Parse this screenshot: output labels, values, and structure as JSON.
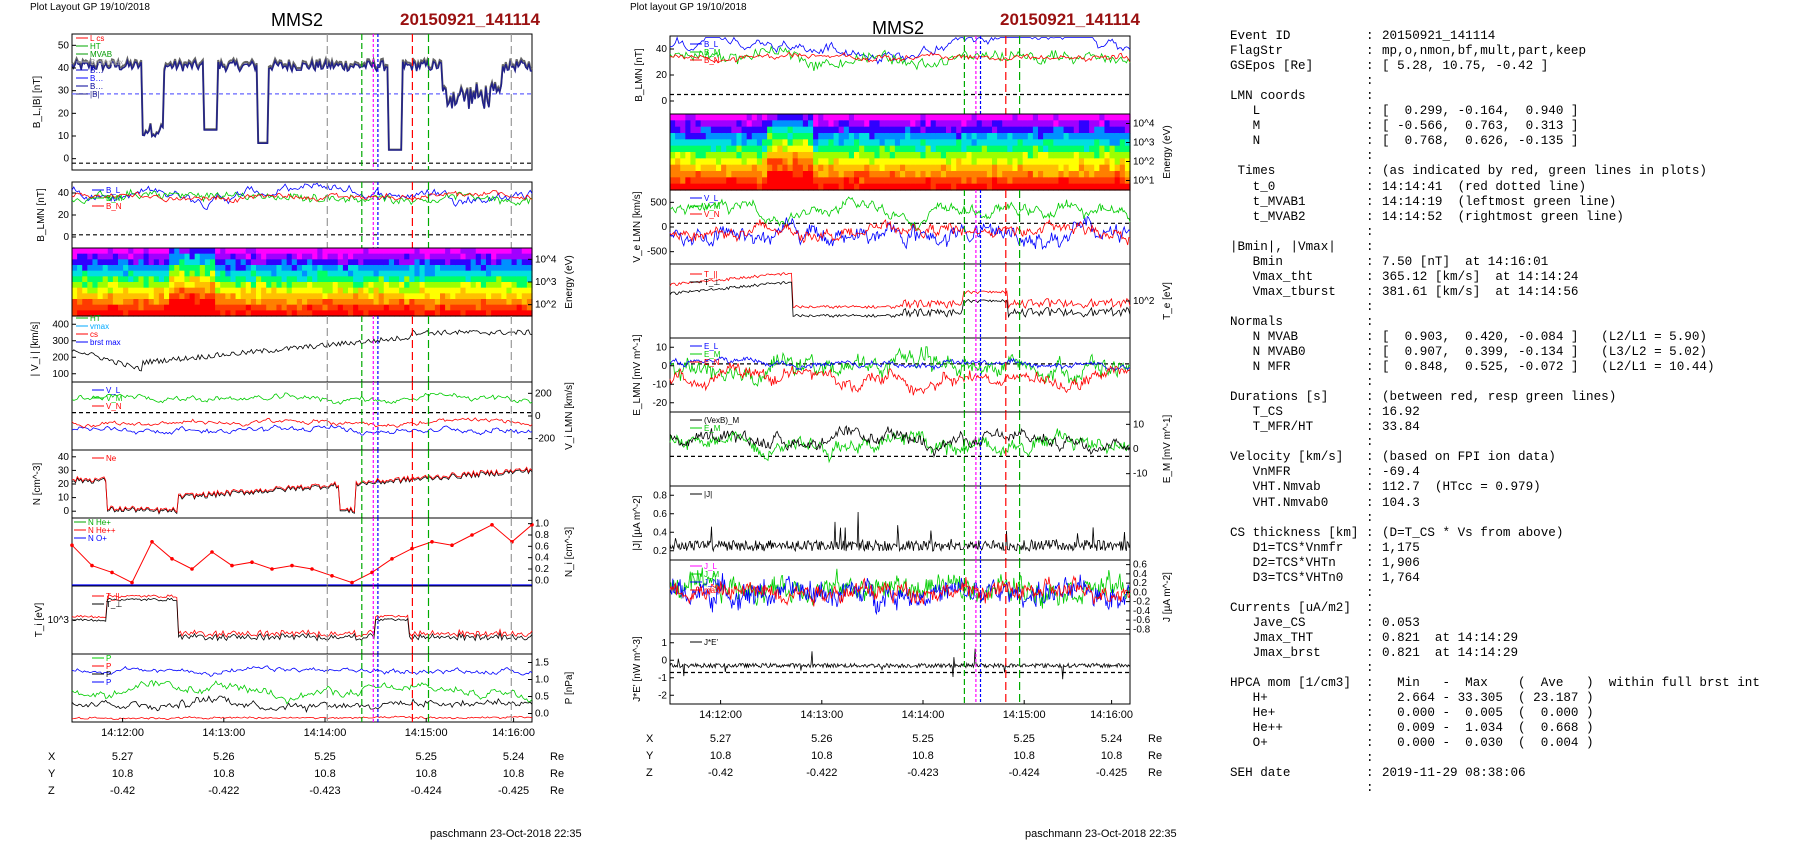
{
  "panels": [
    {
      "header": "Plot Layout GP 19/10/2018",
      "spacecraft": "MMS2",
      "event": "20150921_141114",
      "footer": "paschmann 23-Oct-2018 22:35",
      "time_ticks": [
        "14:12:00",
        "14:13:00",
        "14:14:00",
        "14:15:00",
        "14:16:00"
      ],
      "ephem": {
        "labels": [
          "X",
          "Y",
          "Z"
        ],
        "unit": "Re",
        "rows": [
          [
            "5.27",
            "5.26",
            "5.25",
            "5.25",
            "5.24"
          ],
          [
            "10.8",
            "10.8",
            "10.8",
            "10.8",
            "10.8"
          ],
          [
            "-0.42",
            "-0.422",
            "-0.423",
            "-0.424",
            "-0.425"
          ]
        ]
      }
    },
    {
      "header": "Plot layout GP 19/10/2018",
      "spacecraft": "MMS2",
      "event": "20150921_141114",
      "footer": "paschmann 23-Oct-2018 22:35",
      "time_ticks": [
        "14:12:00",
        "14:13:00",
        "14:14:00",
        "14:15:00",
        "14:16:00"
      ],
      "ephem": {
        "labels": [
          "X",
          "Y",
          "Z"
        ],
        "unit": "Re",
        "rows": [
          [
            "5.27",
            "5.26",
            "5.25",
            "5.25",
            "5.24"
          ],
          [
            "10.8",
            "10.8",
            "10.8",
            "10.8",
            "10.8"
          ],
          [
            "-0.42",
            "-0.422",
            "-0.423",
            "-0.424",
            "-0.425"
          ]
        ]
      }
    }
  ],
  "chart_data": [
    {
      "type": "line",
      "ylabel": "B_L,|B| [nT]",
      "yticks": [
        "0",
        "10",
        "20",
        "30",
        "40",
        "50"
      ],
      "ylim": [
        -3,
        55
      ],
      "legend": [
        "L cs",
        "HT",
        "MVAB",
        "Bminmax",
        "B…",
        "B…",
        "B…",
        "|B|"
      ],
      "series": [
        {
          "name": "|B|",
          "color": "#20208a"
        },
        {
          "name": "B_L",
          "color": "#4040c0"
        }
      ]
    },
    {
      "type": "line",
      "ylabel": "B_LMN [nT]",
      "yticks": [
        "0",
        "20",
        "40"
      ],
      "ylim": [
        -12,
        52
      ],
      "legend": [
        "B_L",
        "B_M",
        "B_N"
      ],
      "series": [
        {
          "name": "B_L",
          "color": "#0000ff"
        },
        {
          "name": "B_M",
          "color": "#00cc00"
        },
        {
          "name": "B_N",
          "color": "#ff0000"
        }
      ]
    },
    {
      "type": "heatmap",
      "ylabel": "Energy (eV)",
      "yticks": [
        "10^2",
        "10^3",
        "10^4"
      ]
    },
    {
      "type": "line",
      "ylabel": "| V_i | [km/s]",
      "yticks": [
        "100",
        "200",
        "300",
        "400"
      ],
      "ylim": [
        70,
        410
      ],
      "legend": [
        "HT",
        "vmax",
        "cs",
        "brst max"
      ],
      "series": [
        {
          "name": "|Vi|",
          "color": "#000000"
        }
      ]
    },
    {
      "type": "line",
      "ylabel": "V_i LMN [km/s]",
      "yticks": [
        "-200",
        "0",
        "200"
      ],
      "ylim": [
        -270,
        300
      ],
      "legend": [
        "V_L",
        "V_M",
        "V_N"
      ],
      "series": [
        {
          "name": "V_L",
          "color": "#00cc00"
        },
        {
          "name": "V_M",
          "color": "#0000ff"
        },
        {
          "name": "V_N",
          "color": "#ff0000"
        }
      ]
    },
    {
      "type": "line",
      "ylabel": "N [cm^-3]",
      "yticks": [
        "0",
        "10",
        "20",
        "30",
        "40"
      ],
      "ylim": [
        -2,
        42
      ],
      "legend": [
        "Ne"
      ],
      "series": [
        {
          "name": "Ne",
          "color": "#ff0000"
        },
        {
          "name": "Ni",
          "color": "#000000"
        }
      ]
    },
    {
      "type": "line",
      "ylabel": "N_i [cm^-3]",
      "yticks": [
        "0.0",
        "0.2",
        "0.4",
        "0.6",
        "0.8",
        "1.0"
      ],
      "ylim": [
        0,
        1.05
      ],
      "legend": [
        "N He+",
        "N He++",
        "N O+"
      ],
      "series": [
        {
          "name": "N He++",
          "color": "#ff0000"
        }
      ]
    },
    {
      "type": "line",
      "ylabel": "T_i [eV]",
      "yticks": [
        "10^3"
      ],
      "legend": [
        "T_||",
        "T_⊥"
      ],
      "series": [
        {
          "name": "T_||",
          "color": "#ff0000"
        },
        {
          "name": "T_⊥",
          "color": "#000000"
        }
      ]
    },
    {
      "type": "line",
      "ylabel": "P [nPa]",
      "yticks": [
        "0.0",
        "0.5",
        "1.0",
        "1.5"
      ],
      "ylim": [
        0,
        1.8
      ],
      "legend": [
        "P",
        "P",
        "P",
        "P"
      ],
      "series": [
        {
          "name": "P",
          "color": "#0000ff"
        },
        {
          "name": "P",
          "color": "#00cc00"
        },
        {
          "name": "P",
          "color": "#000000"
        },
        {
          "name": "P",
          "color": "#ff0000"
        }
      ]
    },
    {
      "type": "line",
      "ylabel": "B_LMN [nT]",
      "yticks": [
        "0",
        "20",
        "40"
      ],
      "legend": [
        "B_L",
        "B_M",
        "B_N"
      ]
    },
    {
      "type": "heatmap",
      "ylabel": "Energy (eV)",
      "yticks": [
        "10^1",
        "10^2",
        "10^3",
        "10^4"
      ]
    },
    {
      "type": "line",
      "ylabel": "V_e LMN [km/s]",
      "yticks": [
        "-500",
        "0",
        "500"
      ],
      "legend": [
        "V_L",
        "V_M",
        "V_N"
      ]
    },
    {
      "type": "line",
      "ylabel": "T_e [eV]",
      "yticks": [
        "10^2"
      ],
      "legend": [
        "T_||",
        "T_⊥"
      ]
    },
    {
      "type": "line",
      "ylabel": "E_LMN [mV m^-1]",
      "yticks": [
        "-20",
        "-10",
        "0",
        "10"
      ],
      "legend": [
        "E_L",
        "E_M",
        "E_N"
      ]
    },
    {
      "type": "line",
      "ylabel": "E_M [mV m^-1]",
      "yticks": [
        "-10",
        "0",
        "10"
      ],
      "legend": [
        "(VexB)_M",
        "E_M"
      ]
    },
    {
      "type": "line",
      "ylabel": "|J| [µA m^-2]",
      "yticks": [
        "0.2",
        "0.4",
        "0.6",
        "0.8"
      ],
      "legend": [
        "|J|"
      ]
    },
    {
      "type": "line",
      "ylabel": "J [µA m^-2]",
      "yticks": [
        "-0.8",
        "-0.6",
        "-0.4",
        "-0.2",
        "0.0",
        "0.2",
        "0.4",
        "0.6"
      ],
      "legend": [
        "J_L",
        "J_M",
        "J_N",
        "max"
      ]
    },
    {
      "type": "line",
      "ylabel": "J*E' [nW m^-3]",
      "yticks": [
        "-2",
        "-1",
        "0",
        "1"
      ],
      "legend": [
        "J*E'"
      ]
    }
  ],
  "info": [
    [
      ":",
      "",
      ""
    ],
    [
      "Event ID",
      ":",
      "20150921_141114"
    ],
    [
      "FlagStr",
      ":",
      "mp,o,nmon,bf,mult,part,keep"
    ],
    [
      "GSEpos [Re]",
      ":",
      "[ 5.28, 10.75, -0.42 ]"
    ],
    [
      "",
      ":",
      ""
    ],
    [
      "LMN coords",
      ":",
      ""
    ],
    [
      "   L",
      ":",
      "[  0.299, -0.164,  0.940 ]"
    ],
    [
      "   M",
      ":",
      "[ -0.566,  0.763,  0.313 ]"
    ],
    [
      "   N",
      ":",
      "[  0.768,  0.626, -0.135 ]"
    ],
    [
      "",
      ":",
      ""
    ],
    [
      " Times",
      ":",
      "(as indicated by red, green lines in plots)"
    ],
    [
      "   t_0",
      ":",
      "14:14:41  (red dotted line)"
    ],
    [
      "   t_MVAB1",
      ":",
      "14:14:19  (leftmost green line)"
    ],
    [
      "   t_MVAB2",
      ":",
      "14:14:52  (rightmost green line)"
    ],
    [
      "",
      ":",
      ""
    ],
    [
      "|Bmin|, |Vmax|",
      ":",
      ""
    ],
    [
      "   Bmin",
      ":",
      "7.50 [nT]  at 14:16:01"
    ],
    [
      "   Vmax_tht",
      ":",
      "365.12 [km/s]  at 14:14:24"
    ],
    [
      "   Vmax_tburst",
      ":",
      "381.61 [km/s]  at 14:14:56"
    ],
    [
      "",
      ":",
      ""
    ],
    [
      "Normals",
      ":",
      ""
    ],
    [
      "   N MVAB",
      ":",
      "[  0.903,  0.420, -0.084 ]   (L2/L1 = 5.90)"
    ],
    [
      "   N MVAB0",
      ":",
      "[  0.907,  0.399, -0.134 ]   (L3/L2 = 5.02)"
    ],
    [
      "   N MFR",
      ":",
      "[  0.848,  0.525, -0.072 ]   (L2/L1 = 10.44)"
    ],
    [
      "",
      ":",
      ""
    ],
    [
      "Durations [s]",
      ":",
      "(between red, resp green lines)"
    ],
    [
      "   T_CS",
      ":",
      "16.92"
    ],
    [
      "   T_MFR/HT",
      ":",
      "33.84"
    ],
    [
      "",
      ":",
      ""
    ],
    [
      "Velocity [km/s]",
      ":",
      "(based on FPI ion data)"
    ],
    [
      "   VnMFR",
      ":",
      "-69.4"
    ],
    [
      "   VHT.Nmvab",
      ":",
      "112.7  (HTcc = 0.979)"
    ],
    [
      "   VHT.Nmvab0",
      ":",
      "104.3"
    ],
    [
      "",
      ":",
      ""
    ],
    [
      "CS thickness [km]",
      ":",
      "(D=T_CS * Vs from above)"
    ],
    [
      "   D1=TCS*Vnmfr",
      ":",
      "1,175"
    ],
    [
      "   D2=TCS*VHTn",
      ":",
      "1,906"
    ],
    [
      "   D3=TCS*VHTn0",
      ":",
      "1,764"
    ],
    [
      "",
      ":",
      ""
    ],
    [
      "Currents [uA/m2]",
      ":",
      ""
    ],
    [
      "   Jave_CS",
      ":",
      "0.053"
    ],
    [
      "   Jmax_THT",
      ":",
      "0.821  at 14:14:29"
    ],
    [
      "   Jmax_brst",
      ":",
      "0.821  at 14:14:29"
    ],
    [
      "",
      ":",
      ""
    ],
    [
      "HPCA mom [1/cm3]",
      ":",
      "  Min   -  Max    (  Ave   )  within full brst int"
    ],
    [
      "   H+",
      ":",
      "  2.664 - 33.305  ( 23.187 )"
    ],
    [
      "   He+",
      ":",
      "  0.000 -  0.005  (  0.000 )"
    ],
    [
      "   He++",
      ":",
      "  0.009 -  1.034  (  0.668 )"
    ],
    [
      "   O+",
      ":",
      "  0.000 -  0.030  (  0.004 )"
    ],
    [
      "",
      ":",
      ""
    ],
    [
      "SEH date",
      ":",
      "2019-11-29 08:38:06"
    ],
    [
      "",
      ":",
      ""
    ]
  ]
}
